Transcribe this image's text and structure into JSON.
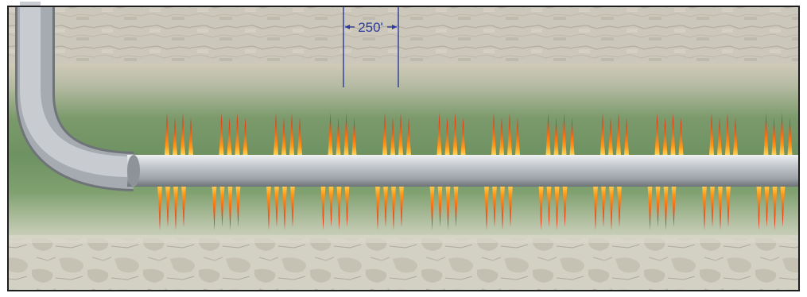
{
  "diagram": {
    "type": "horizontal-well-multistage-fracturing",
    "spacing_label": "250'",
    "stage_count": 12,
    "colors": {
      "well_pipe": "#a9adb3",
      "fracture_outer": "#ff9a1a",
      "fracture_inner": "#e01d0c",
      "dimension_line": "#2b3a9a",
      "reservoir_green": "#6f9262",
      "rock": "#c9c5b8"
    },
    "layers": [
      "upper-rock",
      "reservoir-shale",
      "lower-rock"
    ]
  }
}
